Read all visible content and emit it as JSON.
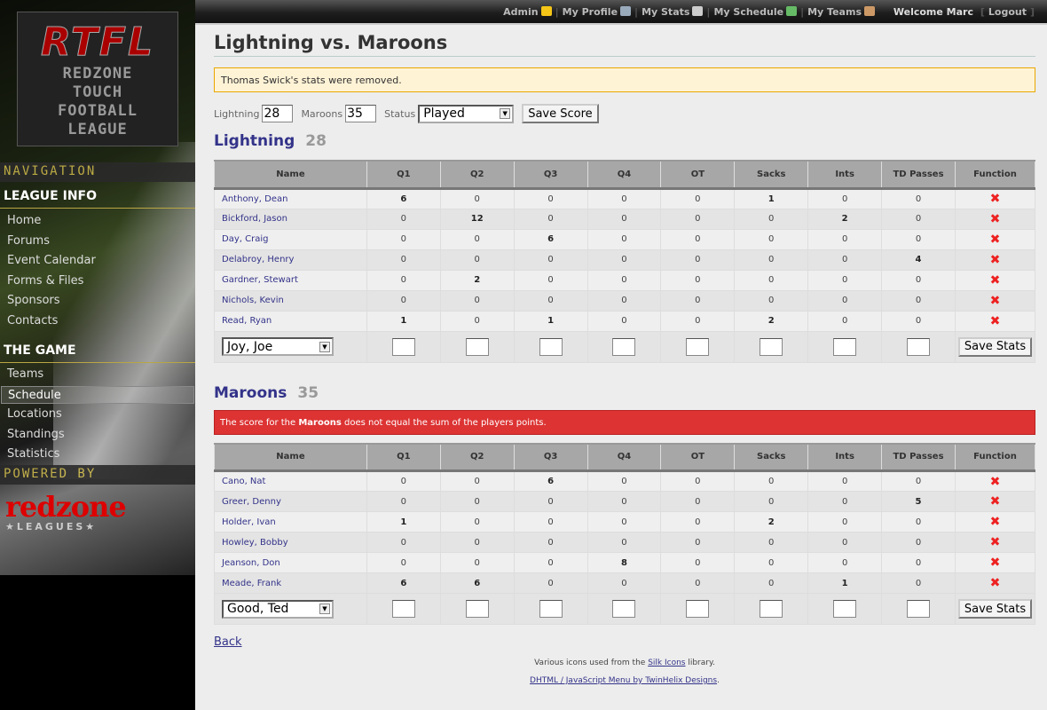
{
  "topbar": {
    "links": [
      {
        "label": "Admin",
        "icon": "star-icon",
        "color": "#f5c518"
      },
      {
        "label": "My Profile",
        "icon": "id-card-icon",
        "color": "#9ab"
      },
      {
        "label": "My Stats",
        "icon": "calculator-icon",
        "color": "#ccc"
      },
      {
        "label": "My Schedule",
        "icon": "calendar-icon",
        "color": "#6b6"
      },
      {
        "label": "My Teams",
        "icon": "group-icon",
        "color": "#c96"
      }
    ],
    "welcome": "Welcome Marc",
    "logout": "Logout"
  },
  "sidebar": {
    "logo": {
      "title": "RTFL",
      "lines": [
        "REDZONE",
        "TOUCH",
        "FOOTBALL",
        "LEAGUE"
      ]
    },
    "navigation": "NAVIGATION",
    "league_info": "LEAGUE INFO",
    "league_items": [
      "Home",
      "Forums",
      "Event Calendar",
      "Forms & Files",
      "Sponsors",
      "Contacts"
    ],
    "the_game": "THE GAME",
    "game_items": [
      "Teams",
      "Schedule",
      "Locations",
      "Standings",
      "Statistics"
    ],
    "active": "Schedule",
    "powered_by": "POWERED BY",
    "sponsor_logo": {
      "name": "redzone",
      "tag": "★LEAGUES★"
    }
  },
  "page": {
    "title": "Lightning vs. Maroons",
    "notice": "Thomas Swick's stats were removed.",
    "score_form": {
      "team1_label": "Lightning",
      "team1_score": "28",
      "team2_label": "Maroons",
      "team2_score": "35",
      "status_label": "Status",
      "status_value": "Played",
      "save": "Save Score"
    },
    "columns": [
      "Name",
      "Q1",
      "Q2",
      "Q3",
      "Q4",
      "OT",
      "Sacks",
      "Ints",
      "TD Passes",
      "Function"
    ],
    "teams": [
      {
        "name": "Lightning",
        "score": "28",
        "players": [
          {
            "name": "Anthony, Dean",
            "stats": [
              6,
              0,
              0,
              0,
              0,
              1,
              0,
              0
            ]
          },
          {
            "name": "Bickford, Jason",
            "stats": [
              0,
              12,
              0,
              0,
              0,
              0,
              2,
              0
            ]
          },
          {
            "name": "Day, Craig",
            "stats": [
              0,
              0,
              6,
              0,
              0,
              0,
              0,
              0
            ]
          },
          {
            "name": "Delabroy, Henry",
            "stats": [
              0,
              0,
              0,
              0,
              0,
              0,
              0,
              4
            ]
          },
          {
            "name": "Gardner, Stewart",
            "stats": [
              0,
              2,
              0,
              0,
              0,
              0,
              0,
              0
            ]
          },
          {
            "name": "Nichols, Kevin",
            "stats": [
              0,
              0,
              0,
              0,
              0,
              0,
              0,
              0
            ]
          },
          {
            "name": "Read, Ryan",
            "stats": [
              1,
              0,
              1,
              0,
              0,
              2,
              0,
              0
            ]
          }
        ],
        "add_player": "Joy, Joe",
        "save": "Save Stats"
      },
      {
        "name": "Maroons",
        "score": "35",
        "error_pre": "The score for the ",
        "error_team": "Maroons",
        "error_post": " does not equal the sum of the players points.",
        "players": [
          {
            "name": "Cano, Nat",
            "stats": [
              0,
              0,
              6,
              0,
              0,
              0,
              0,
              0
            ]
          },
          {
            "name": "Greer, Denny",
            "stats": [
              0,
              0,
              0,
              0,
              0,
              0,
              0,
              5
            ]
          },
          {
            "name": "Holder, Ivan",
            "stats": [
              1,
              0,
              0,
              0,
              0,
              2,
              0,
              0
            ]
          },
          {
            "name": "Howley, Bobby",
            "stats": [
              0,
              0,
              0,
              0,
              0,
              0,
              0,
              0
            ]
          },
          {
            "name": "Jeanson, Don",
            "stats": [
              0,
              0,
              0,
              8,
              0,
              0,
              0,
              0
            ]
          },
          {
            "name": "Meade, Frank",
            "stats": [
              6,
              6,
              0,
              0,
              0,
              0,
              1,
              0
            ]
          }
        ],
        "add_player": "Good, Ted",
        "save": "Save Stats"
      }
    ],
    "back": "Back",
    "footer": {
      "l1_pre": "Various icons used from the ",
      "l1_link": "Silk Icons",
      "l1_post": " library.",
      "l2_link": "DHTML / JavaScript Menu by TwinHelix Designs",
      "l2_post": "."
    }
  }
}
